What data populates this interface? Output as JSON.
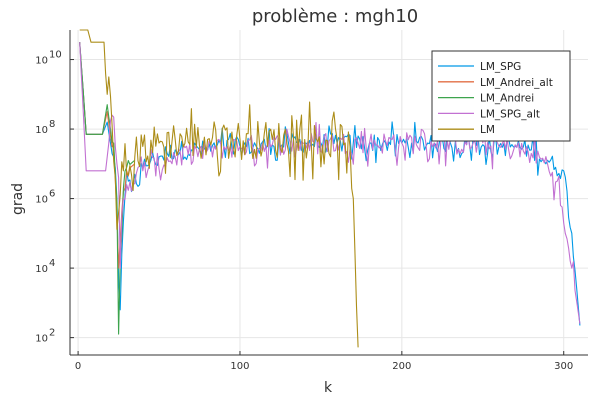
{
  "chart_data": {
    "type": "line",
    "title": "problème : mgh10",
    "xlabel": "k",
    "ylabel": "grad",
    "xlim": [
      -5,
      315
    ],
    "ylim_log10": [
      1.5,
      10.85
    ],
    "yscale": "log10",
    "grid": true,
    "legend_position": "top-right",
    "x_ticks": [
      0,
      100,
      200,
      300
    ],
    "x_tick_labels": [
      "0",
      "100",
      "200",
      "300"
    ],
    "y_ticks": [
      2,
      4,
      6,
      8,
      10
    ],
    "y_tick_labels": [
      {
        "base": "10",
        "exp": "2"
      },
      {
        "base": "10",
        "exp": "4"
      },
      {
        "base": "10",
        "exp": "6"
      },
      {
        "base": "10",
        "exp": "8"
      },
      {
        "base": "10",
        "exp": "10"
      }
    ],
    "series": [
      {
        "name": "LM_SPG",
        "color": "#0099e6",
        "points": [
          [
            1,
            10.5
          ],
          [
            5,
            7.85
          ],
          [
            10,
            7.85
          ],
          [
            15,
            7.85
          ],
          [
            18,
            8.2
          ],
          [
            20,
            7.6
          ],
          [
            22,
            7.2
          ],
          [
            24,
            6.0
          ],
          [
            25,
            3.7
          ],
          [
            26,
            2.8
          ],
          [
            27,
            4.4
          ],
          [
            29,
            6.1
          ],
          [
            31,
            6.5
          ],
          [
            33,
            6.2
          ],
          [
            35,
            6.7
          ],
          [
            38,
            6.4
          ],
          [
            40,
            6.9
          ],
          [
            45,
            7.1
          ],
          [
            50,
            7.2
          ],
          [
            55,
            7.3
          ],
          [
            60,
            7.4
          ],
          [
            70,
            7.4
          ],
          [
            80,
            7.4
          ],
          [
            90,
            7.5
          ],
          [
            100,
            7.5
          ],
          [
            110,
            7.5
          ],
          [
            120,
            7.55
          ],
          [
            130,
            7.6
          ],
          [
            140,
            7.6
          ],
          [
            150,
            7.6
          ],
          [
            160,
            7.6
          ],
          [
            170,
            7.6
          ],
          [
            180,
            7.6
          ],
          [
            190,
            7.6
          ],
          [
            200,
            7.6
          ],
          [
            210,
            7.6
          ],
          [
            220,
            7.6
          ],
          [
            230,
            7.6
          ],
          [
            240,
            7.55
          ],
          [
            250,
            7.55
          ],
          [
            260,
            7.5
          ],
          [
            270,
            7.5
          ],
          [
            280,
            7.4
          ],
          [
            290,
            7.1
          ],
          [
            295,
            6.9
          ],
          [
            300,
            6.8
          ],
          [
            305,
            5.0
          ],
          [
            310,
            2.35
          ]
        ],
        "noise": 0.28
      },
      {
        "name": "LM_Andrei_alt",
        "color": "#e26f46",
        "points": [
          [
            1,
            10.5
          ],
          [
            5,
            7.85
          ],
          [
            15,
            7.85
          ],
          [
            18,
            8.5
          ],
          [
            20,
            7.8
          ],
          [
            22,
            7.5
          ],
          [
            24,
            5.6
          ],
          [
            25,
            4.0
          ],
          [
            26,
            4.8
          ],
          [
            28,
            6.2
          ],
          [
            30,
            6.8
          ],
          [
            35,
            7.0
          ]
        ],
        "noise": 0.2
      },
      {
        "name": "LM_Andrei",
        "color": "#3da44d",
        "points": [
          [
            1,
            10.5
          ],
          [
            5,
            7.85
          ],
          [
            15,
            7.85
          ],
          [
            18,
            8.7
          ],
          [
            20,
            8.0
          ],
          [
            22,
            7.6
          ],
          [
            24,
            5.9
          ],
          [
            25,
            2.1
          ],
          [
            26,
            4.2
          ],
          [
            28,
            6.3
          ],
          [
            30,
            6.9
          ],
          [
            35,
            7.1
          ]
        ],
        "noise": 0.2
      },
      {
        "name": "LM_SPG_alt",
        "color": "#c271d2",
        "points": [
          [
            1,
            10.5
          ],
          [
            5,
            6.8
          ],
          [
            10,
            6.8
          ],
          [
            17,
            6.8
          ],
          [
            19,
            7.6
          ],
          [
            21,
            8.4
          ],
          [
            23,
            7.5
          ],
          [
            25,
            6.6
          ],
          [
            26,
            4.0
          ],
          [
            27,
            5.5
          ],
          [
            30,
            6.4
          ],
          [
            40,
            6.8
          ],
          [
            60,
            7.2
          ],
          [
            80,
            7.4
          ],
          [
            100,
            7.5
          ],
          [
            120,
            7.55
          ],
          [
            140,
            7.6
          ],
          [
            160,
            7.6
          ],
          [
            180,
            7.6
          ],
          [
            200,
            7.6
          ],
          [
            220,
            7.6
          ],
          [
            240,
            7.55
          ],
          [
            260,
            7.5
          ],
          [
            280,
            7.3
          ],
          [
            290,
            7.0
          ],
          [
            296,
            6.5
          ],
          [
            298,
            5.8
          ],
          [
            300,
            5.3
          ],
          [
            305,
            4.0
          ],
          [
            310,
            2.4
          ]
        ],
        "noise": 0.32
      },
      {
        "name": "LM",
        "color": "#ac8d18",
        "points": [
          [
            1,
            10.85
          ],
          [
            6,
            10.85
          ],
          [
            8,
            10.5
          ],
          [
            16,
            10.5
          ],
          [
            17,
            9.6
          ],
          [
            18,
            9.0
          ],
          [
            19,
            9.5
          ],
          [
            21,
            8.1
          ],
          [
            23,
            6.6
          ],
          [
            25,
            5.6
          ],
          [
            26,
            6.1
          ],
          [
            30,
            6.7
          ],
          [
            35,
            7.2
          ],
          [
            40,
            7.5
          ],
          [
            50,
            7.6
          ],
          [
            60,
            7.7
          ],
          [
            80,
            7.7
          ],
          [
            100,
            7.7
          ],
          [
            120,
            7.7
          ],
          [
            140,
            7.7
          ],
          [
            160,
            7.7
          ],
          [
            165,
            7.6
          ],
          [
            168,
            7.5
          ],
          [
            170,
            6.0
          ],
          [
            171,
            4.5
          ],
          [
            172,
            2.9
          ],
          [
            173,
            1.72
          ]
        ],
        "noise": 0.55
      }
    ]
  }
}
